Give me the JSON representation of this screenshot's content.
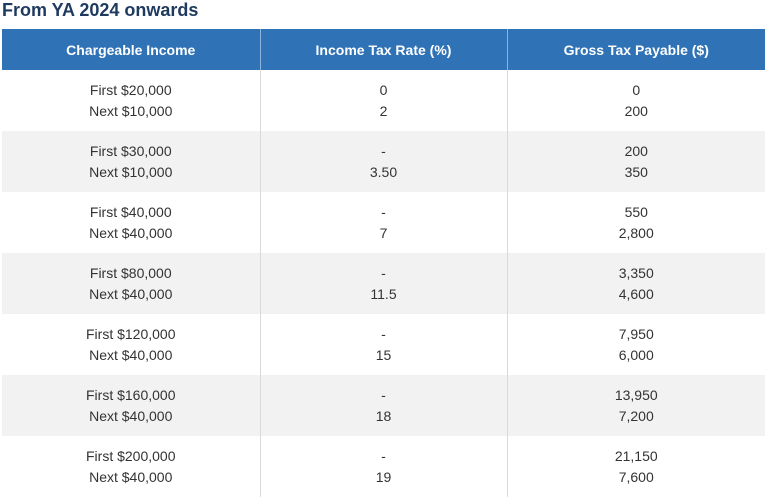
{
  "title": "From YA 2024 onwards",
  "table": {
    "headers": [
      "Chargeable Income",
      "Income Tax Rate (%)",
      "Gross Tax Payable ($)"
    ],
    "rows": [
      {
        "income": [
          "First $20,000",
          "Next $10,000"
        ],
        "rate": [
          "0",
          "2"
        ],
        "payable": [
          "0",
          "200"
        ]
      },
      {
        "income": [
          "First $30,000",
          "Next $10,000"
        ],
        "rate": [
          "-",
          "3.50"
        ],
        "payable": [
          "200",
          "350"
        ]
      },
      {
        "income": [
          "First $40,000",
          "Next $40,000"
        ],
        "rate": [
          "-",
          "7"
        ],
        "payable": [
          "550",
          "2,800"
        ]
      },
      {
        "income": [
          "First $80,000",
          "Next $40,000"
        ],
        "rate": [
          "-",
          "11.5"
        ],
        "payable": [
          "3,350",
          "4,600"
        ]
      },
      {
        "income": [
          "First $120,000",
          "Next $40,000"
        ],
        "rate": [
          "-",
          "15"
        ],
        "payable": [
          "7,950",
          "6,000"
        ]
      },
      {
        "income": [
          "First $160,000",
          "Next $40,000"
        ],
        "rate": [
          "-",
          "18"
        ],
        "payable": [
          "13,950",
          "7,200"
        ]
      },
      {
        "income": [
          "First $200,000",
          "Next $40,000"
        ],
        "rate": [
          "-",
          "19"
        ],
        "payable": [
          "21,150",
          "7,600"
        ]
      }
    ]
  }
}
